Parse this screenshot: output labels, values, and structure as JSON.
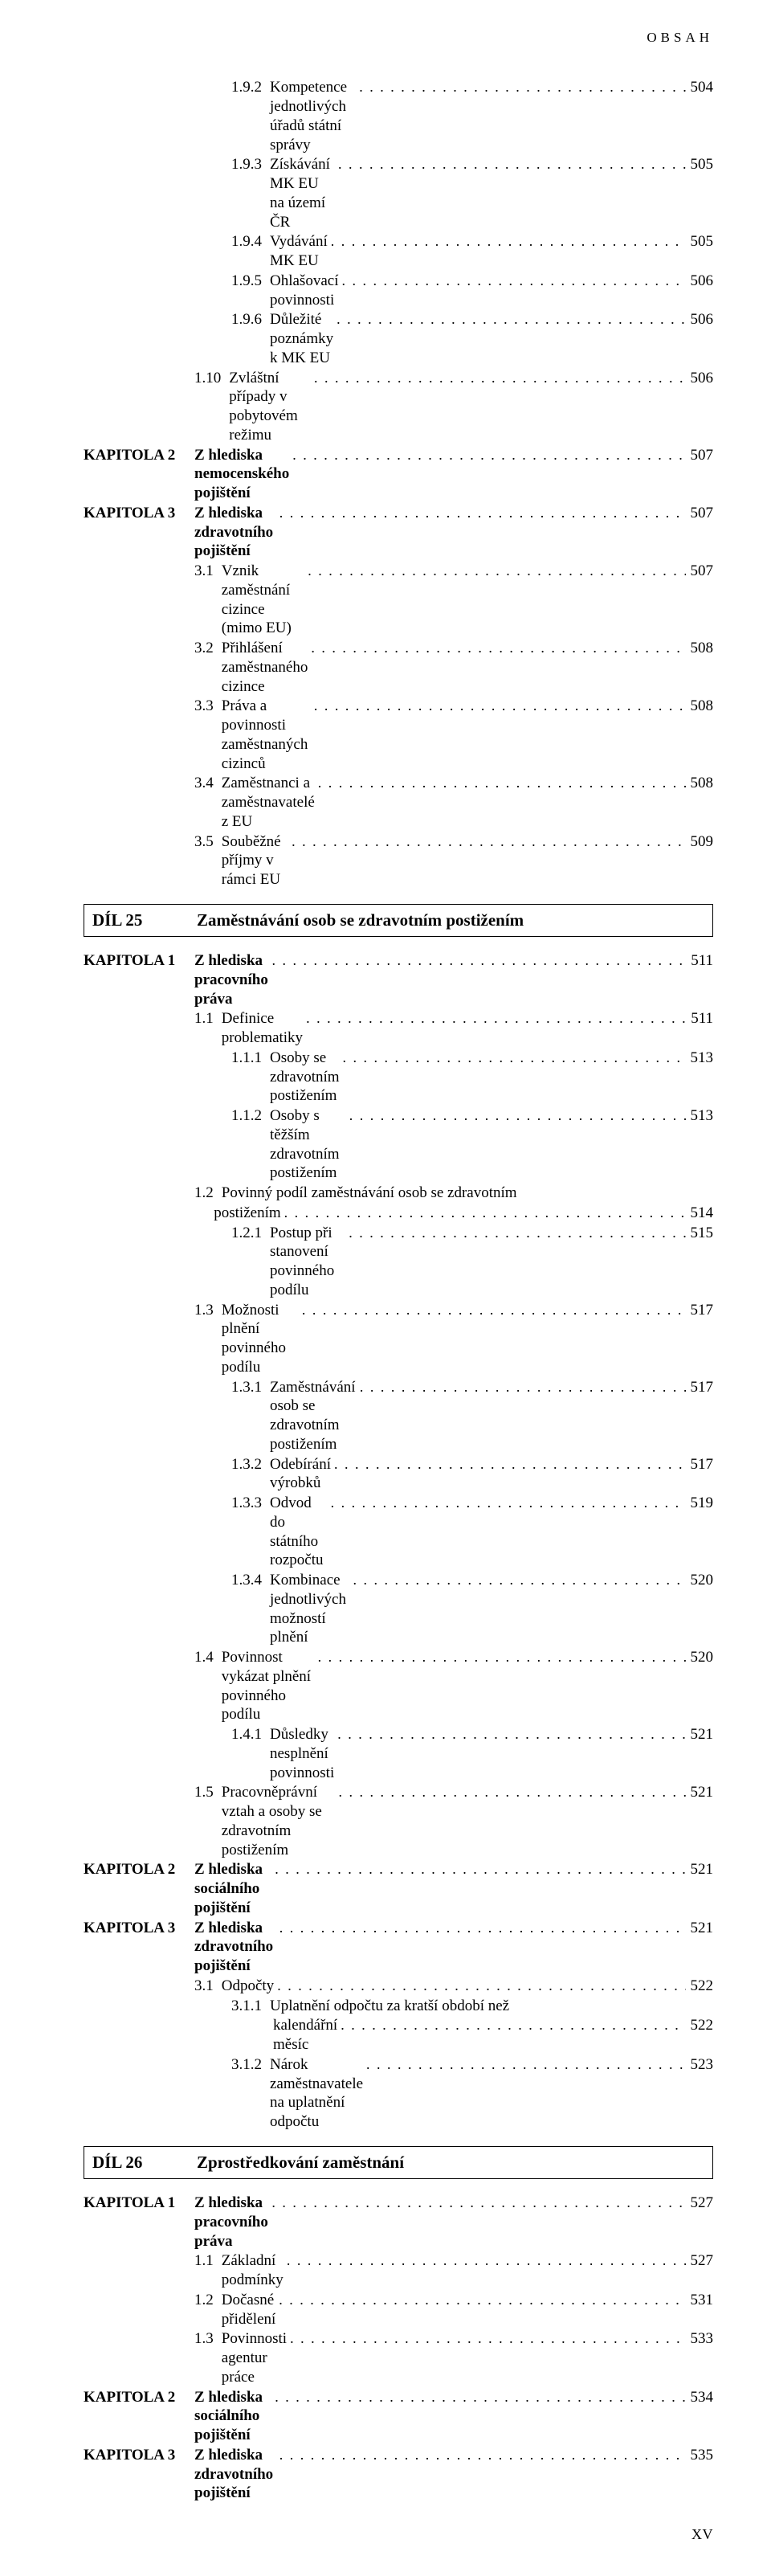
{
  "running_head": "OBSAH",
  "folio": "XV",
  "labels": {
    "kapitola1": "KAPITOLA 1",
    "kapitola2": "KAPITOLA 2",
    "kapitola3": "KAPITOLA 3",
    "dil25": "DÍL 25",
    "dil26": "DÍL 26"
  },
  "parts": {
    "d25_title": "Zaměstnávání osob se zdravotním postižením",
    "d26_title": "Zprostředkování zaměstnání"
  },
  "toc": {
    "a": [
      {
        "num": "1.9.2",
        "title": "Kompetence jednotlivých úřadů státní správy",
        "page": "504",
        "indent": 1
      },
      {
        "num": "1.9.3",
        "title": "Získávání MK EU na území ČR",
        "page": "505",
        "indent": 1
      },
      {
        "num": "1.9.4",
        "title": "Vydávání MK EU",
        "page": "505",
        "indent": 1
      },
      {
        "num": "1.9.5",
        "title": "Ohlašovací povinnosti",
        "page": "506",
        "indent": 1
      },
      {
        "num": "1.9.6",
        "title": "Důležité poznámky k MK EU",
        "page": "506",
        "indent": 1
      },
      {
        "num": "1.10",
        "title": "Zvláštní případy v pobytovém režimu",
        "page": "506",
        "indent": 0
      }
    ],
    "a_k2": {
      "title": "Z hlediska nemocenského pojištění",
      "page": "507"
    },
    "a_k3": {
      "title": "Z hlediska zdravotního pojištění",
      "page": "507"
    },
    "a_k3_sub": [
      {
        "num": "3.1",
        "title": "Vznik zaměstnání cizince (mimo EU)",
        "page": "507"
      },
      {
        "num": "3.2",
        "title": "Přihlášení zaměstnaného cizince",
        "page": "508"
      },
      {
        "num": "3.3",
        "title": "Práva a povinnosti zaměstnaných cizinců",
        "page": "508"
      },
      {
        "num": "3.4",
        "title": "Zaměstnanci a zaměstnavatelé z EU",
        "page": "508"
      },
      {
        "num": "3.5",
        "title": "Souběžné příjmy v rámci EU",
        "page": "509"
      }
    ],
    "b_k1": {
      "title": "Z hlediska pracovního práva",
      "page": "511"
    },
    "b_k1_sub": [
      {
        "num": "1.1",
        "title": "Definice problematiky",
        "page": "511",
        "indent": 0
      },
      {
        "num": "1.1.1",
        "title": "Osoby se zdravotním postižením",
        "page": "513",
        "indent": 1
      },
      {
        "num": "1.1.2",
        "title": "Osoby s těžším zdravotním postižením",
        "page": "513",
        "indent": 1
      },
      {
        "num": "1.2",
        "title_a": "Povinný podíl zaměstnávání osob se zdravotním",
        "title_b": "postižením",
        "page": "514",
        "indent": 0,
        "wrap": true
      },
      {
        "num": "1.2.1",
        "title": "Postup při stanovení povinného podílu",
        "page": "515",
        "indent": 1
      },
      {
        "num": "1.3",
        "title": "Možnosti plnění povinného podílu",
        "page": "517",
        "indent": 0
      },
      {
        "num": "1.3.1",
        "title": "Zaměstnávání osob se zdravotním postižením",
        "page": "517",
        "indent": 1
      },
      {
        "num": "1.3.2",
        "title": "Odebírání výrobků",
        "page": "517",
        "indent": 1
      },
      {
        "num": "1.3.3",
        "title": "Odvod do státního rozpočtu",
        "page": "519",
        "indent": 1
      },
      {
        "num": "1.3.4",
        "title": "Kombinace jednotlivých možností plnění",
        "page": "520",
        "indent": 1
      },
      {
        "num": "1.4",
        "title": "Povinnost vykázat plnění povinného podílu",
        "page": "520",
        "indent": 0
      },
      {
        "num": "1.4.1",
        "title": "Důsledky nesplnění povinnosti",
        "page": "521",
        "indent": 1
      },
      {
        "num": "1.5",
        "title": "Pracovněprávní vztah a osoby se zdravotním postižením",
        "page": "521",
        "indent": 0
      }
    ],
    "b_k2": {
      "title": "Z hlediska sociálního pojištění",
      "page": "521"
    },
    "b_k3": {
      "title": "Z hlediska zdravotního pojištění",
      "page": "521"
    },
    "b_k3_sub": [
      {
        "num": "3.1",
        "title": "Odpočty",
        "page": "522",
        "indent": 0
      },
      {
        "num": "3.1.1",
        "title_a": "Uplatnění odpočtu za kratší období než",
        "title_b": "kalendářní měsíc",
        "page": "522",
        "indent": 1,
        "wrap": true
      },
      {
        "num": "3.1.2",
        "title": "Nárok zaměstnavatele na uplatnění odpočtu",
        "page": "523",
        "indent": 1
      }
    ],
    "c_k1": {
      "title": "Z hlediska pracovního práva",
      "page": "527"
    },
    "c_k1_sub": [
      {
        "num": "1.1",
        "title": "Základní podmínky",
        "page": "527"
      },
      {
        "num": "1.2",
        "title": "Dočasné přidělení",
        "page": "531"
      },
      {
        "num": "1.3",
        "title": "Povinnosti agentur práce",
        "page": "533"
      }
    ],
    "c_k2": {
      "title": "Z hlediska sociálního pojištění",
      "page": "534"
    },
    "c_k3": {
      "title": "Z hlediska zdravotního pojištění",
      "page": "535"
    }
  }
}
